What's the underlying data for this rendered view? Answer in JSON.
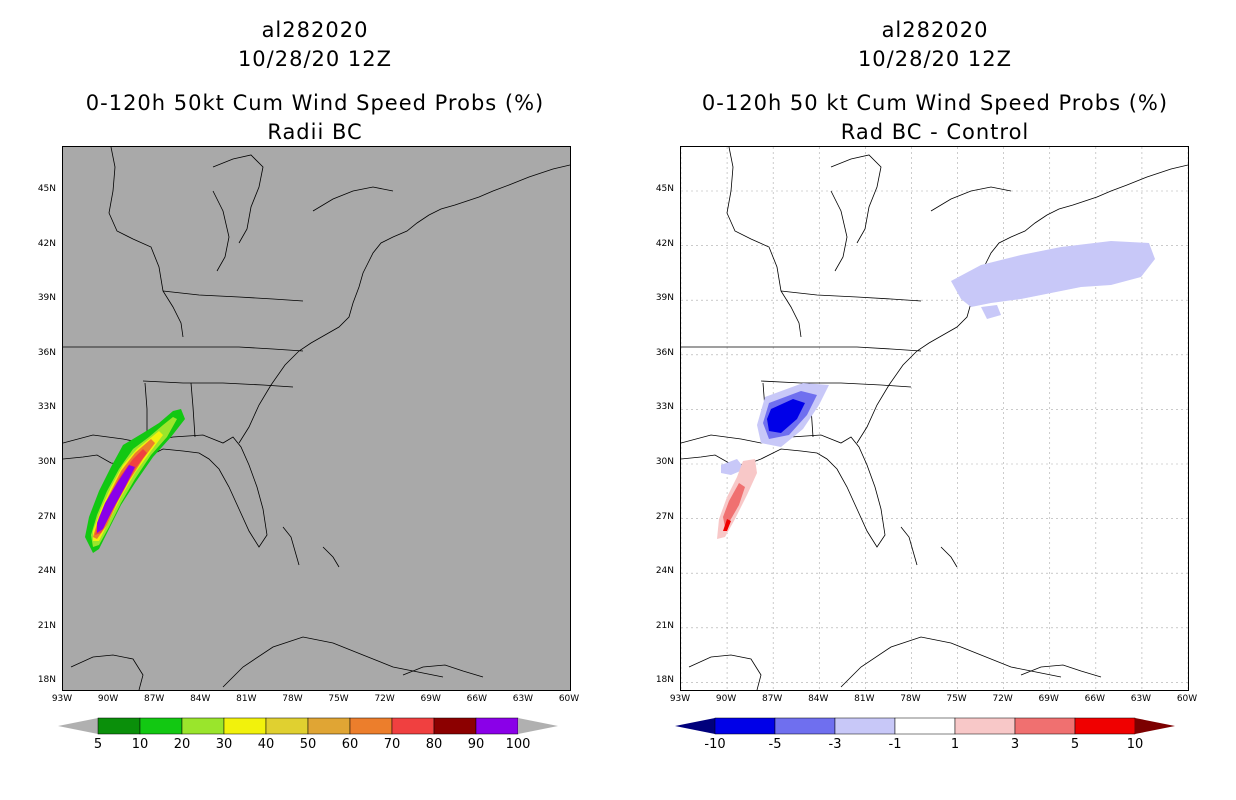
{
  "left_panel": {
    "title_line1": "al282020",
    "title_line2": "10/28/20 12Z",
    "title_line3": "0-120h 50kt Cum Wind Speed Probs (%)",
    "title_line4": "Radii BC",
    "background": "#a9a9a9",
    "colorbar": {
      "labels": [
        "5",
        "10",
        "20",
        "30",
        "40",
        "50",
        "60",
        "70",
        "80",
        "90",
        "100"
      ],
      "colors": [
        "#0a8f0a",
        "#12c812",
        "#9ae52c",
        "#f2f20c",
        "#e0d030",
        "#e0a534",
        "#ec7e2c",
        "#f04040",
        "#8c0000",
        "#8a00e8"
      ],
      "under_color": "#b0b0b0",
      "over_color": "#b0b0b0"
    }
  },
  "right_panel": {
    "title_line1": "al282020",
    "title_line2": "10/28/20 12Z",
    "title_line3": "0-120h 50 kt Cum Wind Speed Probs (%)",
    "title_line4": "Rad BC - Control",
    "background": "#ffffff",
    "colorbar": {
      "labels": [
        "-10",
        "-5",
        "-3",
        "-1",
        "1",
        "3",
        "5",
        "10"
      ],
      "colors": [
        "#0000e8",
        "#6f6fef",
        "#c8c8f8",
        "#ffffff",
        "#f8c8c8",
        "#f07070",
        "#f00000"
      ],
      "under_color": "#00007c",
      "over_color": "#7c0000"
    }
  },
  "lat_labels": [
    "45N",
    "42N",
    "39N",
    "36N",
    "33N",
    "30N",
    "27N",
    "24N",
    "21N",
    "18N"
  ],
  "lon_labels": [
    "93W",
    "90W",
    "87W",
    "84W",
    "81W",
    "78W",
    "75W",
    "72W",
    "69W",
    "66W",
    "63W",
    "60W"
  ]
}
